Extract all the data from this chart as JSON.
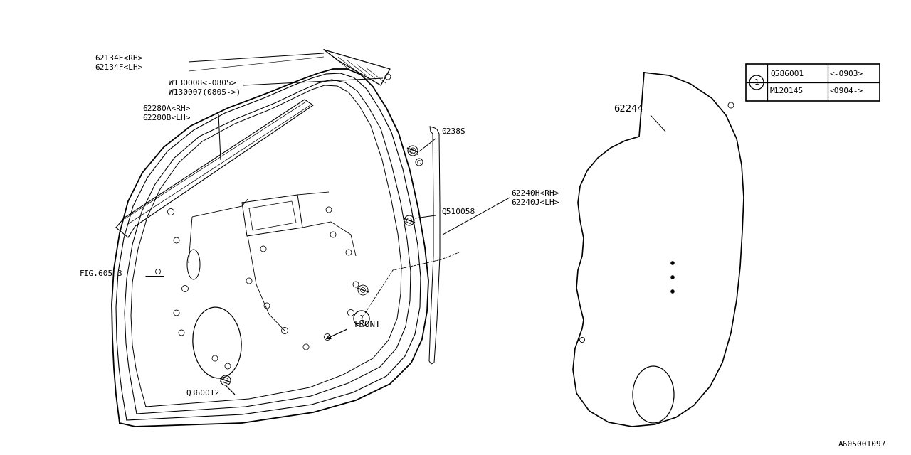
{
  "bg_color": "#ffffff",
  "line_color": "#000000",
  "fig_id": "A605001097",
  "labels": {
    "62134E_RH": "62134E<RH>",
    "62134F_LH": "62134F<LH>",
    "W130008": "W130008<-0805>",
    "W130007": "W130007(0805->)",
    "62280A_RH": "62280A<RH>",
    "62280B_LH": "62280B<LH>",
    "FIG": "FIG.605-3",
    "Q360012": "Q360012",
    "Q510058": "Q510058",
    "0238S": "0238S",
    "62240H_RH": "62240H<RH>",
    "62240J_LH": "62240J<LH>",
    "62244": "62244",
    "FRONT": "FRONT",
    "Q586001": "Q586001",
    "range1": "<-0903>",
    "M120145": "M120145",
    "range2": "<0904->",
    "circ1": "1"
  },
  "font_size": 8.0,
  "lw": 0.9
}
